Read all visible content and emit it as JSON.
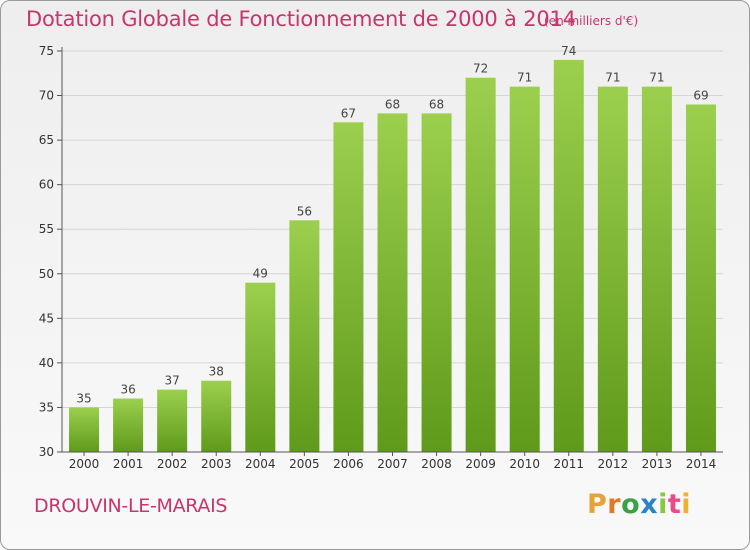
{
  "header": {
    "title": "Dotation Globale de Fonctionnement de 2000 à 2014",
    "unit": "(en milliers d'€)"
  },
  "footer": {
    "place": "DROUVIN-LE-MARAIS",
    "logo": "Proxiti"
  },
  "colors": {
    "title": "#c8356c",
    "bar_top": "#9ccf4e",
    "bar_bottom": "#5f9a1a",
    "grid": "#d6d6d6",
    "axis": "#555555"
  },
  "chart_data": {
    "type": "bar",
    "title": "Dotation Globale de Fonctionnement de 2000 à 2014",
    "subtitle": "(en milliers d'€)",
    "xlabel": "",
    "ylabel": "",
    "categories": [
      "2000",
      "2001",
      "2002",
      "2003",
      "2004",
      "2005",
      "2006",
      "2007",
      "2008",
      "2009",
      "2010",
      "2011",
      "2012",
      "2013",
      "2014"
    ],
    "values": [
      35,
      36,
      37,
      38,
      49,
      56,
      67,
      68,
      68,
      72,
      71,
      74,
      71,
      71,
      69
    ],
    "ylim": [
      30,
      75
    ],
    "yticks": [
      30,
      35,
      40,
      45,
      50,
      55,
      60,
      65,
      70,
      75
    ],
    "grid": true,
    "legend": "none"
  }
}
